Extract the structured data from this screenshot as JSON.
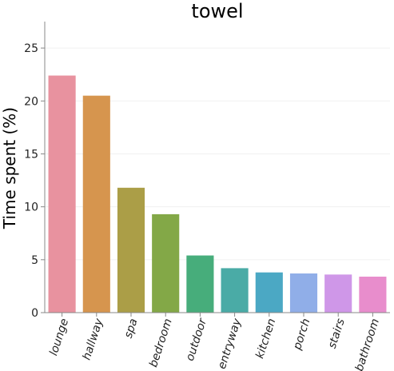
{
  "chart_data": {
    "type": "bar",
    "title": "towel",
    "xlabel": "",
    "ylabel": "Time spent (%)",
    "categories": [
      "lounge",
      "hallway",
      "spa",
      "bedroom",
      "outdoor",
      "entryway",
      "kitchen",
      "porch",
      "stairs",
      "bathroom"
    ],
    "values": [
      22.4,
      20.5,
      11.8,
      9.3,
      5.4,
      4.2,
      3.8,
      3.7,
      3.6,
      3.4
    ],
    "colors": [
      "#e8929f",
      "#d6954e",
      "#ab9e47",
      "#83a847",
      "#47ad7b",
      "#4aaba6",
      "#4ba8c4",
      "#90aee8",
      "#cf97e8",
      "#e88dcc"
    ],
    "ylim": [
      0,
      27.5
    ],
    "yticks": [
      0,
      5,
      10,
      15,
      20,
      25
    ],
    "grid": true,
    "legend": "none"
  }
}
